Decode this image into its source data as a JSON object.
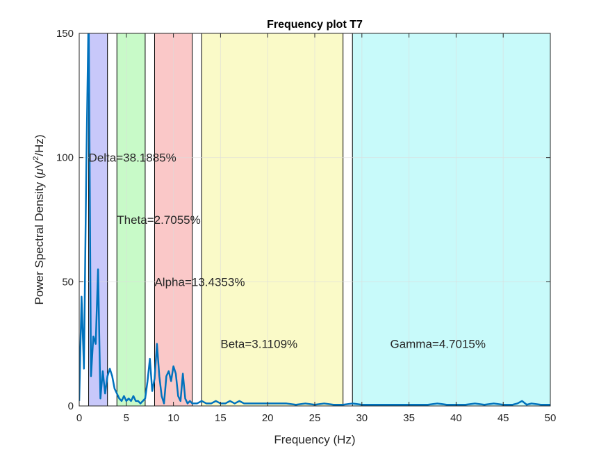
{
  "chart_data": {
    "type": "line",
    "title": "Frequency plot T7",
    "xlabel": "Frequency (Hz)",
    "ylabel_parts": {
      "pre": "Power Spectral Density (",
      "mu": "μ",
      "mid": "V",
      "sup": "2",
      "post": "/Hz)"
    },
    "xlim": [
      0,
      50
    ],
    "ylim": [
      0,
      150
    ],
    "xticks": [
      0,
      5,
      10,
      15,
      20,
      25,
      30,
      35,
      40,
      45,
      50
    ],
    "yticks": [
      0,
      50,
      100,
      150
    ],
    "grid": true,
    "line_color": "#0072BD",
    "bands": [
      {
        "name": "Delta",
        "range": [
          1,
          3
        ],
        "color": "#c8c8fa",
        "label": "Delta=38.1885%",
        "label_x": 1,
        "label_y": 100
      },
      {
        "name": "Theta",
        "range": [
          4,
          7
        ],
        "color": "#c8fac8",
        "label": "Theta=2.7055%",
        "label_x": 4,
        "label_y": 75
      },
      {
        "name": "Alpha",
        "range": [
          8,
          12
        ],
        "color": "#fac8c8",
        "label": "Alpha=13.4353%",
        "label_x": 8,
        "label_y": 50
      },
      {
        "name": "Beta",
        "range": [
          13,
          28
        ],
        "color": "#fafac8",
        "label": "Beta=3.1109%",
        "label_x": 15,
        "label_y": 25
      },
      {
        "name": "Gamma",
        "range": [
          29,
          50
        ],
        "color": "#c8fafa",
        "label": "Gamma=4.7015%",
        "label_x": 33,
        "label_y": 25
      }
    ],
    "series": {
      "x": [
        0,
        0.25,
        0.5,
        0.75,
        1.0,
        1.25,
        1.5,
        1.75,
        2.0,
        2.25,
        2.5,
        2.75,
        3.0,
        3.25,
        3.5,
        3.75,
        4.0,
        4.25,
        4.5,
        4.75,
        5.0,
        5.25,
        5.5,
        5.75,
        6.0,
        6.25,
        6.5,
        6.75,
        7.0,
        7.25,
        7.5,
        7.75,
        8.0,
        8.25,
        8.5,
        8.75,
        9.0,
        9.25,
        9.5,
        9.75,
        10.0,
        10.25,
        10.5,
        10.75,
        11.0,
        11.25,
        11.5,
        11.75,
        12.0,
        12.5,
        13.0,
        13.5,
        14.0,
        14.5,
        15.0,
        15.5,
        16.0,
        16.5,
        17.0,
        17.5,
        18.0,
        19.0,
        20.0,
        21.0,
        22.0,
        23.0,
        24.0,
        25.0,
        26.0,
        27.0,
        28.0,
        29.0,
        30.0,
        31.0,
        32.0,
        33.0,
        34.0,
        35.0,
        36.0,
        37.0,
        38.0,
        39.0,
        40.0,
        41.0,
        42.0,
        43.0,
        44.0,
        45.0,
        46.0,
        46.5,
        47.0,
        47.5,
        48.0,
        49.0,
        50.0
      ],
      "y": [
        2,
        44,
        15,
        95,
        160,
        12,
        28,
        25,
        55,
        3,
        14,
        5,
        12,
        15,
        12,
        7,
        5,
        3,
        2,
        4,
        2,
        3,
        2,
        4,
        2,
        2,
        1,
        2,
        3,
        10,
        19,
        6,
        11,
        25,
        12,
        4,
        1,
        12,
        14,
        10,
        16,
        13,
        4,
        2,
        13,
        3,
        1,
        2,
        1,
        1,
        2,
        1,
        1,
        2,
        1,
        1,
        2,
        1,
        2,
        1,
        1,
        1,
        1,
        1,
        1,
        0.5,
        1,
        0.5,
        1,
        0.5,
        0.5,
        1,
        0.5,
        0.5,
        0.5,
        0.5,
        0.5,
        0.5,
        0.5,
        0.5,
        1,
        0.5,
        0.5,
        0.5,
        1,
        0.5,
        1,
        0.5,
        0.5,
        1,
        2,
        0.5,
        1,
        0.5,
        0.5
      ]
    }
  }
}
